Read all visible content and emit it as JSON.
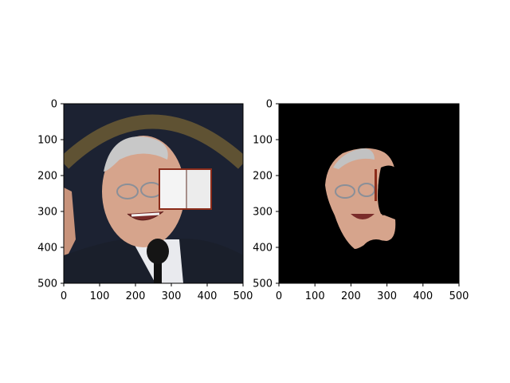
{
  "chart_data": [
    {
      "type": "image",
      "title": "",
      "xlim": [
        0,
        500
      ],
      "ylim": [
        500,
        0
      ],
      "xticks": [
        0,
        100,
        200,
        300,
        400,
        500
      ],
      "yticks": [
        0,
        100,
        200,
        300,
        400,
        500
      ],
      "xtick_labels": [
        "0",
        "100",
        "200",
        "300",
        "400",
        "500"
      ],
      "ytick_labels": [
        "0",
        "100",
        "200",
        "300",
        "400",
        "500"
      ],
      "content": "photo-portrait-with-book-occluder",
      "occluder_bbox_data": [
        265,
        180,
        415,
        295
      ]
    },
    {
      "type": "image",
      "title": "",
      "xlim": [
        0,
        500
      ],
      "ylim": [
        500,
        0
      ],
      "xticks": [
        0,
        100,
        200,
        300,
        400,
        500
      ],
      "yticks": [
        0,
        100,
        200,
        300,
        400,
        500
      ],
      "xtick_labels": [
        "0",
        "100",
        "200",
        "300",
        "400",
        "500"
      ],
      "ytick_labels": [
        "0",
        "100",
        "200",
        "300",
        "400",
        "500"
      ],
      "content": "face-segmentation-mask-on-black"
    }
  ],
  "colors": {
    "background_dark": "#1c2232",
    "skin": "#d6a48c",
    "suit": "#1a1f2b",
    "book_page": "#f4f4f4",
    "book_cover": "#8b2c1a",
    "mask_black": "#000000"
  }
}
